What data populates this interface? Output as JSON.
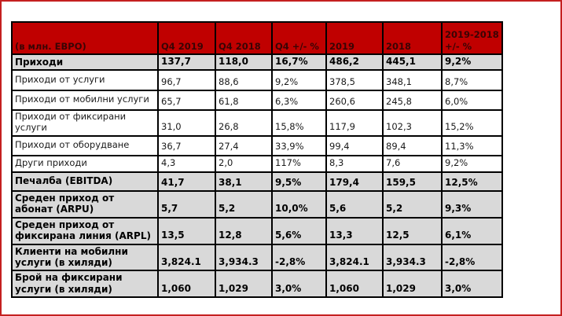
{
  "page": {
    "frame_color": "#c42020",
    "background": "#ffffff"
  },
  "table": {
    "title_unit": "(в млн. ЕВРО)",
    "header": {
      "bg": "#c00000",
      "text_color": "#3a0404",
      "columns": [
        "(в млн. ЕВРО)",
        "Q4 2019",
        "Q4 2018",
        "Q4 +/- %",
        "2019",
        "2018",
        "2019-2018 +/- %"
      ]
    },
    "emph_bg": "#d9d9d9",
    "border_color": "#000000",
    "rows": [
      {
        "label": "Приходи",
        "bold": true,
        "values": [
          "137,7",
          "118,0",
          "16,7%",
          "486,2",
          "445,1",
          "9,2%"
        ]
      },
      {
        "label": "Приходи от услуги",
        "bold": false,
        "values": [
          "96,7",
          "88,6",
          "9,2%",
          "378,5",
          "348,1",
          "8,7%"
        ]
      },
      {
        "label": "Приходи от мобилни услуги",
        "bold": false,
        "values": [
          "65,7",
          "61,8",
          "6,3%",
          "260,6",
          "245,8",
          "6,0%"
        ]
      },
      {
        "label": "Приходи от фиксирани услуги",
        "bold": false,
        "values": [
          "31,0",
          "26,8",
          "15,8%",
          "117,9",
          "102,3",
          "15,2%"
        ]
      },
      {
        "label": "Приходи от оборудване",
        "bold": false,
        "values": [
          "36,7",
          "27,4",
          "33,9%",
          "99,4",
          "89,4",
          "11,3%"
        ]
      },
      {
        "label": "Други приходи",
        "bold": false,
        "values": [
          "4,3",
          "2,0",
          "117%",
          "8,3",
          "7,6",
          "9,2%"
        ]
      },
      {
        "label": "Печалба (EBITDA)",
        "bold": true,
        "values": [
          "41,7",
          "38,1",
          "9,5%",
          "179,4",
          "159,5",
          "12,5%"
        ]
      },
      {
        "label": "Среден приход от абонат (ARPU)",
        "bold": true,
        "values": [
          "5,7",
          "5,2",
          "10,0%",
          "5,6",
          "5,2",
          "9,3%"
        ]
      },
      {
        "label": "Среден приход от фиксирана линия (ARPL)",
        "bold": true,
        "values": [
          "13,5",
          "12,8",
          "5,6%",
          "13,3",
          "12,5",
          "6,1%"
        ]
      },
      {
        "label": "Клиенти на мобилни услуги (в хиляди)",
        "bold": true,
        "values": [
          "3,824.1",
          "3,934.3",
          "-2,8%",
          "3,824.1",
          "3,934.3",
          "-2,8%"
        ]
      },
      {
        "label": "Брой на фиксирани услуги (в хиляди)",
        "bold": true,
        "values": [
          "1,060",
          "1,029",
          "3,0%",
          "1,060",
          "1,029",
          "3,0%"
        ]
      }
    ]
  }
}
